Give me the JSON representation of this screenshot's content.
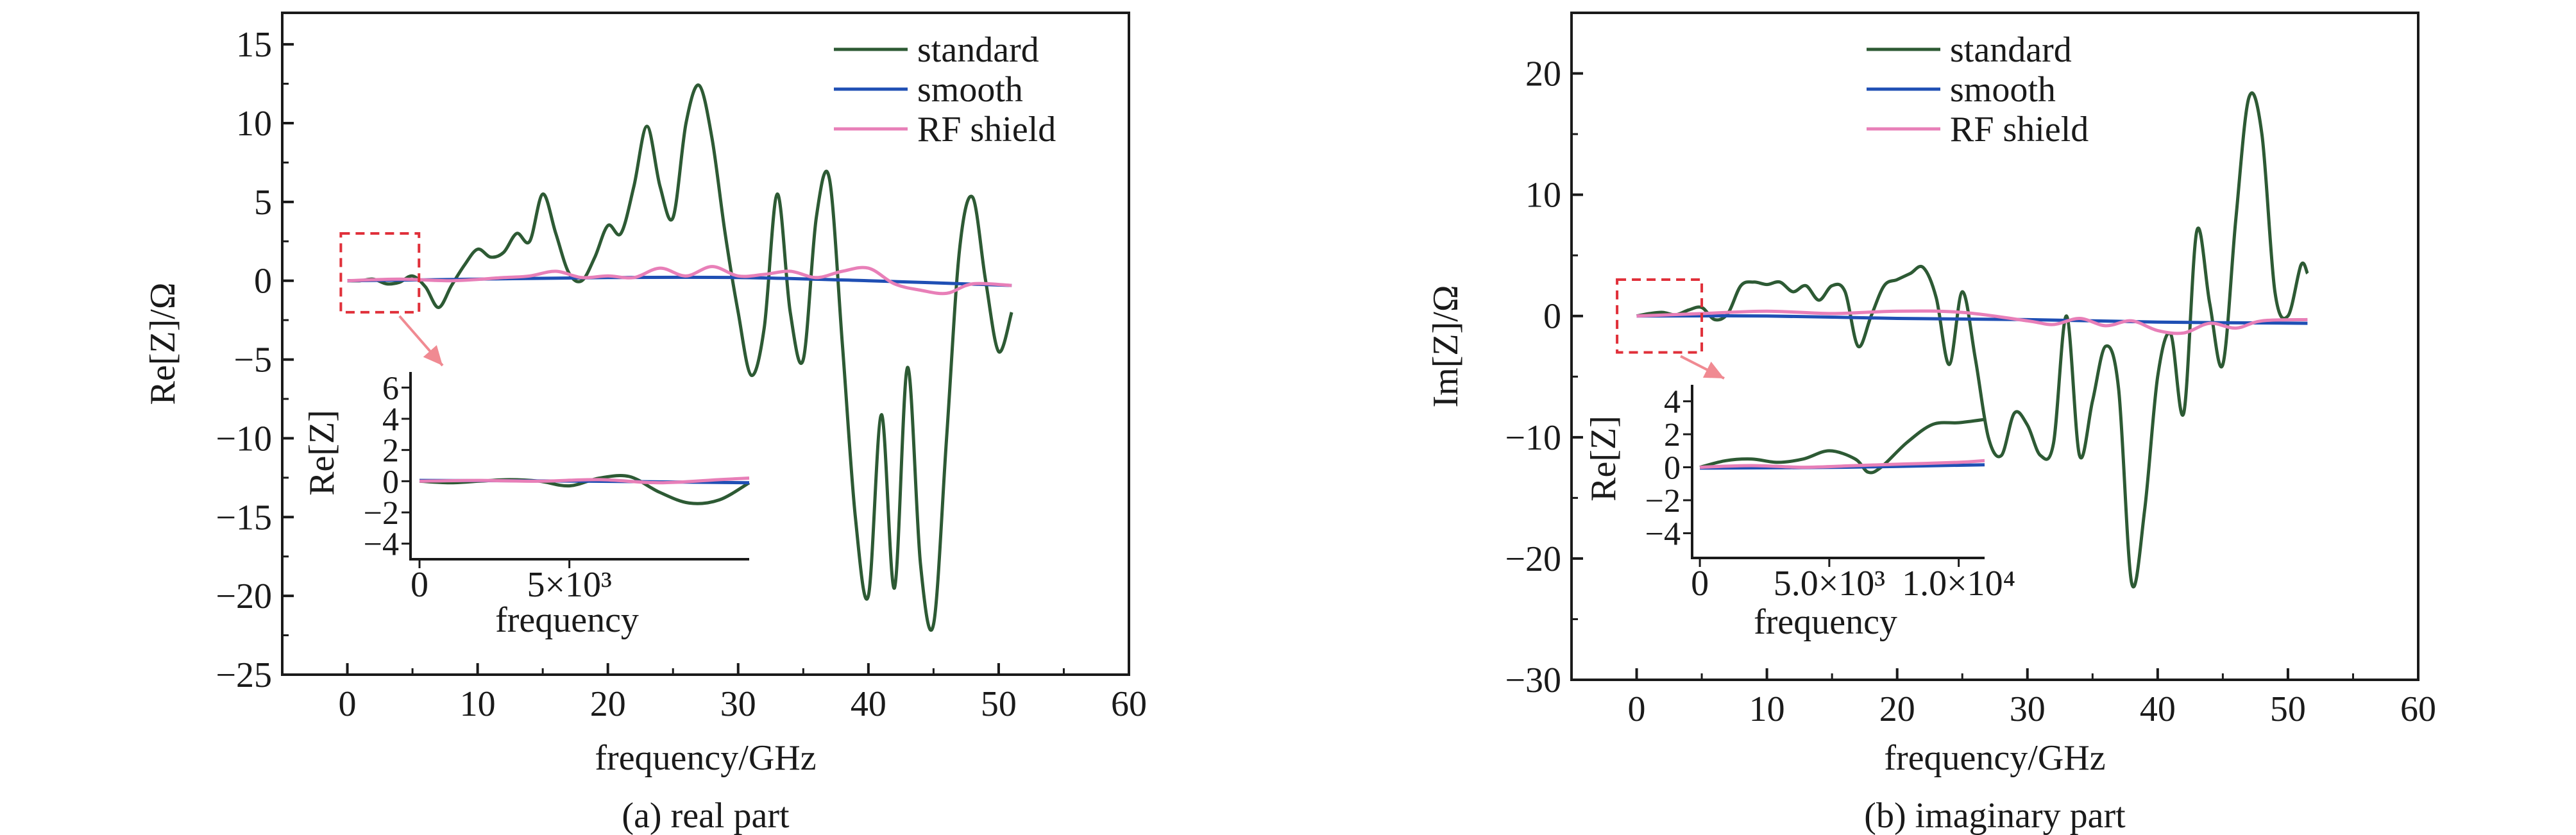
{
  "colors": {
    "standard": "#2d5a34",
    "smooth": "#1f4fb4",
    "rf_shield": "#e87fb8",
    "highlight_box": "#e0303a",
    "arrow": "#f08a92",
    "axis": "#1a1a1a"
  },
  "chart_data": [
    {
      "type": "line",
      "panel": "a",
      "caption": "(a) real part",
      "xlabel": "frequency/GHz",
      "ylabel": "Re[Z]/Ω",
      "xlim": [
        -5,
        60
      ],
      "ylim": [
        -25,
        17
      ],
      "xticks": [
        0,
        10,
        20,
        30,
        40,
        50,
        60
      ],
      "yticks": [
        -25,
        -20,
        -15,
        -10,
        -5,
        0,
        5,
        10,
        15
      ],
      "grid": false,
      "legend_position": "top-right",
      "highlight_region": {
        "x": [
          -0.5,
          5.5
        ],
        "y": [
          -2,
          3
        ]
      },
      "series": [
        {
          "name": "standard",
          "color_key": "standard",
          "x": [
            0,
            1,
            2,
            3,
            4,
            5,
            6,
            7,
            8,
            9,
            10,
            11,
            12,
            13,
            14,
            15,
            16,
            17,
            18,
            19,
            20,
            21,
            22,
            23,
            24,
            25,
            26,
            27,
            28,
            29,
            30,
            31,
            32,
            33,
            34,
            35,
            36,
            37,
            38,
            39,
            40,
            41,
            42,
            43,
            44,
            45,
            46,
            47,
            48,
            49,
            50,
            51
          ],
          "y": [
            0,
            0,
            0.1,
            -0.2,
            -0.1,
            0.3,
            -0.4,
            -1.7,
            -0.3,
            1.0,
            2.0,
            1.5,
            1.8,
            3.0,
            2.5,
            5.5,
            3.0,
            0.5,
            0,
            1.5,
            3.5,
            3.0,
            6.0,
            9.8,
            6.0,
            4.0,
            10.0,
            12.4,
            9.0,
            3.0,
            -2.0,
            -6.0,
            -3.0,
            5.5,
            -2.0,
            -5.0,
            4.0,
            6.5,
            -4.0,
            -15.0,
            -20.0,
            -8.5,
            -19.5,
            -5.5,
            -18.0,
            -21.8,
            -10.0,
            2.0,
            5.3,
            0,
            -4.5,
            -2.0
          ]
        },
        {
          "name": "smooth",
          "color_key": "smooth",
          "x": [
            0,
            10,
            20,
            30,
            40,
            51
          ],
          "y": [
            0,
            0.1,
            0.2,
            0.2,
            0,
            -0.3
          ]
        },
        {
          "name": "RF shield",
          "color_key": "rf_shield",
          "x": [
            0,
            4,
            8,
            12,
            14,
            16,
            18,
            20,
            22,
            24,
            26,
            28,
            30,
            32,
            34,
            36,
            38,
            40,
            42,
            44,
            46,
            48,
            51
          ],
          "y": [
            0,
            0.1,
            0,
            0.2,
            0.3,
            0.6,
            0.2,
            0.3,
            0.2,
            0.8,
            0.3,
            0.9,
            0.3,
            0.4,
            0.6,
            0.2,
            0.6,
            0.8,
            -0.2,
            -0.6,
            -0.8,
            -0.2,
            -0.3
          ]
        }
      ],
      "inset": {
        "xlabel": "frequency",
        "ylabel": "Re[Z]",
        "xlim": [
          -300,
          11000
        ],
        "ylim": [
          -5,
          7
        ],
        "xticks": [
          0,
          5000
        ],
        "xtick_labels": [
          "0",
          "5×10³"
        ],
        "yticks": [
          -4,
          -2,
          0,
          2,
          4,
          6
        ],
        "ytick_labels": [
          "−4",
          "−2",
          "0",
          "2",
          "4",
          "6"
        ],
        "series": [
          {
            "name": "standard",
            "color_key": "standard",
            "x": [
              0,
              1000,
              2000,
              3000,
              4000,
              5000,
              6000,
              7000,
              8000,
              9000,
              10000,
              11000
            ],
            "y": [
              0,
              -0.1,
              0,
              0.1,
              0,
              -0.3,
              0.2,
              0.3,
              -0.7,
              -1.4,
              -1.2,
              -0.1
            ]
          },
          {
            "name": "smooth",
            "color_key": "smooth",
            "x": [
              0,
              5500,
              11000
            ],
            "y": [
              0.05,
              0,
              -0.1
            ]
          },
          {
            "name": "RF shield",
            "color_key": "rf_shield",
            "x": [
              0,
              2000,
              4000,
              6000,
              8000,
              10000,
              11000
            ],
            "y": [
              0,
              0.05,
              0,
              0.1,
              -0.1,
              0.1,
              0.2
            ]
          }
        ]
      }
    },
    {
      "type": "line",
      "panel": "b",
      "caption": "(b) imaginary part",
      "xlabel": "frequency/GHz",
      "ylabel": "Im[Z]/Ω",
      "xlim": [
        -5,
        60
      ],
      "ylim": [
        -30,
        25
      ],
      "xticks": [
        0,
        10,
        20,
        30,
        40,
        50,
        60
      ],
      "yticks": [
        -30,
        -20,
        -10,
        0,
        10,
        20
      ],
      "grid": false,
      "legend_position": "top-right",
      "highlight_region": {
        "x": [
          -1.5,
          5
        ],
        "y": [
          -3,
          3
        ]
      },
      "series": [
        {
          "name": "standard",
          "color_key": "standard",
          "x": [
            0,
            1,
            2,
            3,
            4,
            5,
            6,
            7,
            8,
            9,
            10,
            11,
            12,
            13,
            14,
            15,
            16,
            17,
            18,
            19,
            20,
            21,
            22,
            23,
            24,
            25,
            26,
            27,
            28,
            29,
            30,
            31,
            32,
            33,
            34,
            35,
            36,
            37,
            38,
            39,
            40,
            41,
            42,
            43,
            44,
            45,
            46,
            47,
            48,
            49,
            50,
            51,
            51.5
          ],
          "y": [
            0,
            0.2,
            0.3,
            0.1,
            0.5,
            0.7,
            -0.3,
            0.2,
            2.5,
            2.8,
            2.6,
            2.8,
            2.0,
            2.5,
            1.3,
            2.5,
            2.0,
            -2.5,
            0,
            2.5,
            3.0,
            3.5,
            4.0,
            1.5,
            -4.0,
            2.0,
            -3.5,
            -10.0,
            -11.5,
            -8.0,
            -9.0,
            -11.5,
            -10.5,
            0,
            -11.5,
            -7.0,
            -2.5,
            -6.0,
            -22.0,
            -16.0,
            -5.0,
            -1.5,
            -8.0,
            7.0,
            1.0,
            -4.0,
            8.0,
            18.0,
            15.0,
            2.0,
            0,
            4.2,
            3.5
          ]
        },
        {
          "name": "smooth",
          "color_key": "smooth",
          "x": [
            0,
            10,
            20,
            30,
            40,
            51.5
          ],
          "y": [
            0,
            0,
            -0.2,
            -0.3,
            -0.5,
            -0.6
          ]
        },
        {
          "name": "RF shield",
          "color_key": "rf_shield",
          "x": [
            0,
            5,
            10,
            15,
            20,
            25,
            30,
            32,
            34,
            36,
            38,
            40,
            42,
            44,
            46,
            48,
            51.5
          ],
          "y": [
            0,
            0.2,
            0.4,
            0.2,
            0.4,
            0.3,
            -0.4,
            -0.7,
            -0.2,
            -0.8,
            -0.4,
            -1.2,
            -1.4,
            -0.6,
            -1.0,
            -0.4,
            -0.3
          ]
        }
      ],
      "inset": {
        "xlabel": "frequency",
        "ylabel": "Re[Z]",
        "xlim": [
          -300,
          11000
        ],
        "ylim": [
          -5.5,
          5
        ],
        "xticks": [
          0,
          5000,
          10000
        ],
        "xtick_labels": [
          "0",
          "5.0×10³",
          "1.0×10⁴"
        ],
        "yticks": [
          -4,
          -2,
          0,
          2,
          4
        ],
        "ytick_labels": [
          "−4",
          "−2",
          "0",
          "2",
          "4"
        ],
        "series": [
          {
            "name": "standard",
            "color_key": "standard",
            "x": [
              0,
              1000,
              2000,
              3000,
              4000,
              5000,
              6000,
              6500,
              7000,
              8000,
              9000,
              10000,
              11000
            ],
            "y": [
              0,
              0.4,
              0.5,
              0.3,
              0.5,
              1.0,
              0.5,
              -0.3,
              0,
              1.5,
              2.6,
              2.7,
              2.9
            ]
          },
          {
            "name": "smooth",
            "color_key": "smooth",
            "x": [
              0,
              5500,
              11000
            ],
            "y": [
              -0.05,
              0,
              0.15
            ]
          },
          {
            "name": "RF shield",
            "color_key": "rf_shield",
            "x": [
              0,
              2000,
              4000,
              6000,
              8000,
              10000,
              11000
            ],
            "y": [
              0,
              0.1,
              0,
              0.1,
              0.2,
              0.3,
              0.4
            ]
          }
        ]
      }
    }
  ]
}
